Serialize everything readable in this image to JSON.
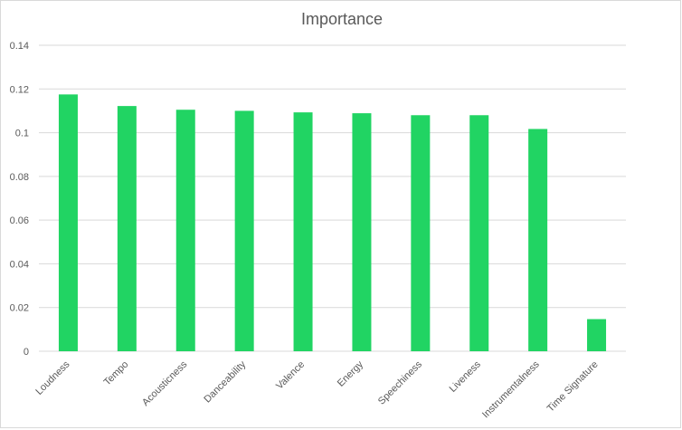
{
  "chart_data": {
    "type": "bar",
    "title": "Importance",
    "xlabel": "",
    "ylabel": "",
    "categories": [
      "Loudness",
      "Tempo",
      "Acousticness",
      "Danceability",
      "Valence",
      "Energy",
      "Speechiness",
      "Liveness",
      "Instrumentalness",
      "Time Signature"
    ],
    "values": [
      0.1175,
      0.1122,
      0.1105,
      0.11,
      0.1093,
      0.1089,
      0.108,
      0.108,
      0.1017,
      0.0147
    ],
    "ylim": [
      0,
      0.14
    ],
    "yticks": [
      "0",
      "0.02",
      "0.04",
      "0.06",
      "0.08",
      "0.1",
      "0.12",
      "0.14"
    ],
    "grid": true,
    "legend": "none",
    "bar_color": "#21d463",
    "grid_color": "#d9d9d9",
    "text_color": "#595959"
  }
}
